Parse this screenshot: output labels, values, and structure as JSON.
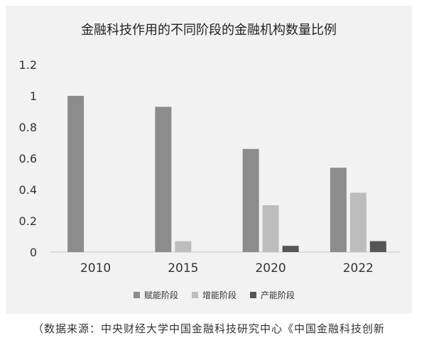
{
  "chart_data": {
    "type": "bar",
    "title": "金融科技作用的不同阶段的金融机构数量比例",
    "categories": [
      "2010",
      "2015",
      "2020",
      "2022"
    ],
    "series": [
      {
        "name": "赋能阶段",
        "color": "#8c8c8c",
        "values": [
          1.0,
          0.93,
          0.66,
          0.54
        ]
      },
      {
        "name": "增能阶段",
        "color": "#bdbdbd",
        "values": [
          0,
          0.07,
          0.3,
          0.38
        ]
      },
      {
        "name": "产能阶段",
        "color": "#555555",
        "values": [
          0,
          0,
          0.04,
          0.07
        ]
      }
    ],
    "yticks": [
      "1.2",
      "1",
      "0.8",
      "0.6",
      "0.4",
      "0.2",
      "0"
    ],
    "ylim": [
      0,
      1.2
    ],
    "grid": false,
    "legend_position": "bottom"
  },
  "source": "（数据来源：中央财经大学中国金融科技研究中心《中国金融科技创新"
}
